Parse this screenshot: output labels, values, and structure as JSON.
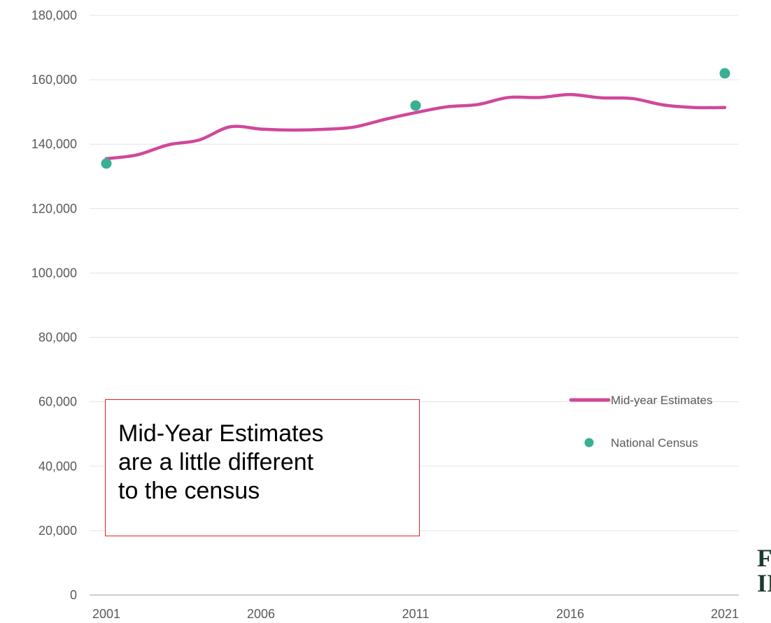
{
  "chart_data": {
    "type": "line",
    "x": [
      2001,
      2002,
      2003,
      2004,
      2005,
      2006,
      2007,
      2008,
      2009,
      2010,
      2011,
      2012,
      2013,
      2014,
      2015,
      2016,
      2017,
      2018,
      2019,
      2020,
      2021
    ],
    "series": [
      {
        "name": "Mid-year Estimates",
        "type": "line",
        "color": "#d0489a",
        "values": [
          135500,
          136700,
          139800,
          141300,
          145400,
          144700,
          144400,
          144600,
          145300,
          147700,
          149800,
          151600,
          152300,
          154500,
          154500,
          155400,
          154400,
          154200,
          152200,
          151400,
          151400
        ]
      },
      {
        "name": "National Census",
        "type": "scatter",
        "color": "#3aaf94",
        "x": [
          2001,
          2011,
          2021
        ],
        "values": [
          134000,
          152000,
          162000
        ]
      }
    ],
    "xticks": [
      "2001",
      "2006",
      "2011",
      "2016",
      "2021"
    ],
    "yticks": [
      "0",
      "20,000",
      "40,000",
      "60,000",
      "80,000",
      "100,000",
      "120,000",
      "140,000",
      "160,000",
      "180,000"
    ],
    "ylim": [
      0,
      180000
    ],
    "xlim": [
      2001,
      2021
    ],
    "grid": true,
    "legend": "right",
    "annotation": {
      "lines": [
        "Mid-Year Estimates",
        "are a little different",
        "to the census"
      ],
      "border_color": "#e02020"
    }
  },
  "corner_glyph": "F\nII"
}
